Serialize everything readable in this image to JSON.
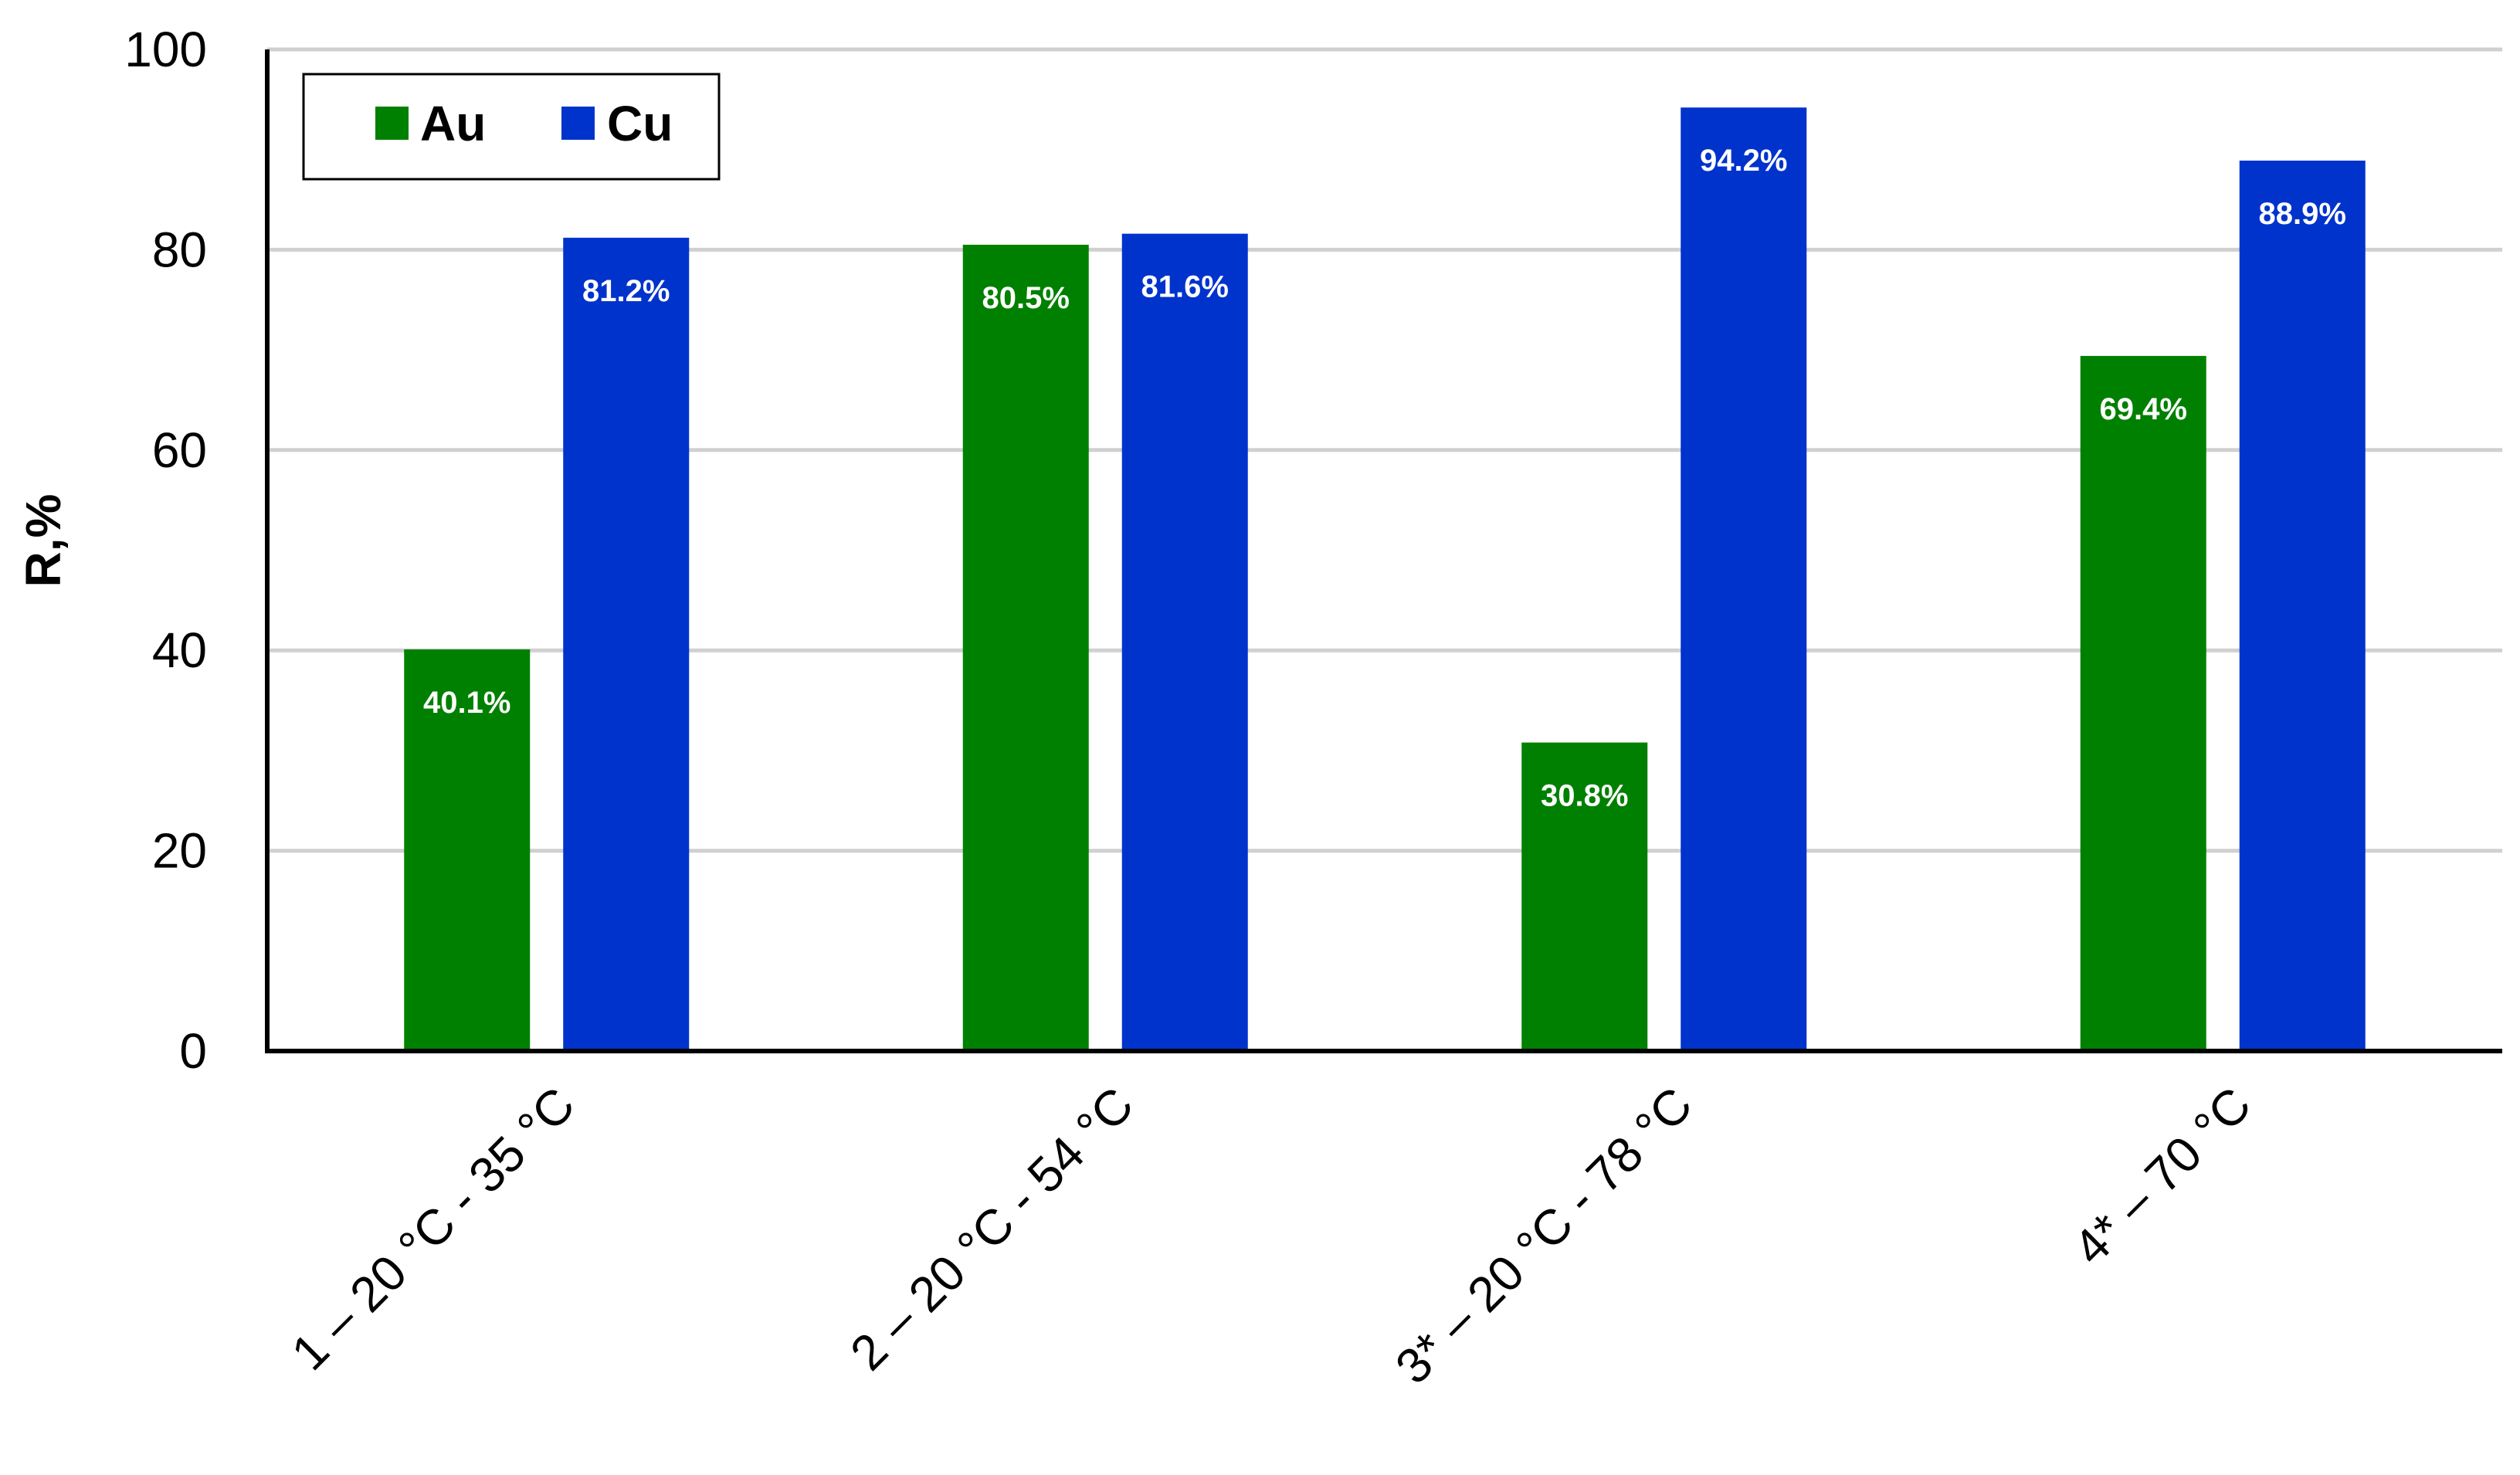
{
  "chart_data": {
    "type": "bar",
    "categories": [
      "1 – 20 °C - 35 °C",
      "2 – 20 °C - 54 °C",
      "3* – 20 °C - 78 °C",
      "4* – 70 °C"
    ],
    "series": [
      {
        "name": "Au",
        "color": "#008000",
        "values": [
          40.1,
          80.5,
          30.8,
          69.4
        ],
        "labels": [
          "40.1%",
          "80.5%",
          "30.8%",
          "69.4%"
        ]
      },
      {
        "name": "Cu",
        "color": "#0033cc",
        "values": [
          81.2,
          81.6,
          94.2,
          88.9
        ],
        "labels": [
          "81.2%",
          "81.6%",
          "94.2%",
          "88.9%"
        ]
      }
    ],
    "ylabel": "R,%",
    "xlabel": "",
    "ylim": [
      0,
      100
    ],
    "yticks": [
      "0",
      "20",
      "40",
      "60",
      "80",
      "100"
    ],
    "grid": true,
    "legend_position": "top-left"
  }
}
